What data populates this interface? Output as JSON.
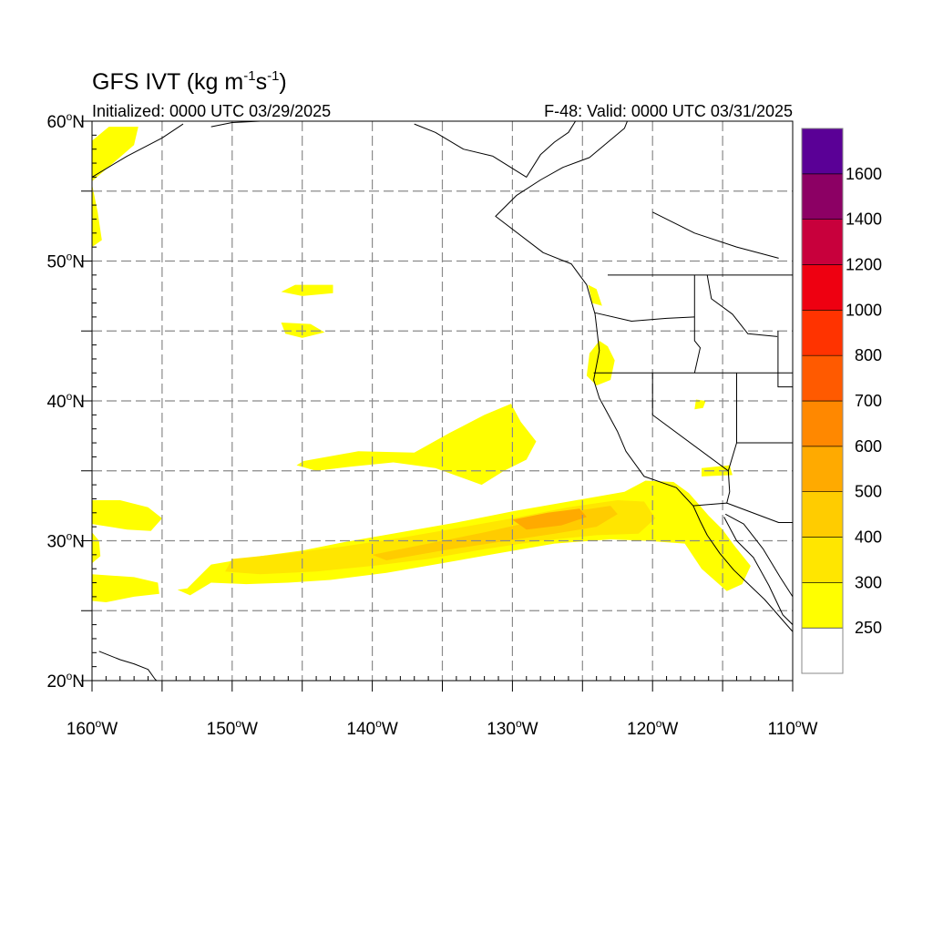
{
  "title": {
    "main": "GFS IVT (kg m",
    "sup1": "-1",
    "mid": "s",
    "sup2": "-1",
    "end": ")"
  },
  "subtitle_left": "Initialized: 0000 UTC 03/29/2025",
  "subtitle_right": "F-48: Valid: 0000 UTC 03/31/2025",
  "lat_ticks": [
    {
      "value": 60,
      "label": "60",
      "suffix": "N"
    },
    {
      "value": 50,
      "label": "50",
      "suffix": "N"
    },
    {
      "value": 40,
      "label": "40",
      "suffix": "N"
    },
    {
      "value": 30,
      "label": "30",
      "suffix": "N"
    },
    {
      "value": 20,
      "label": "20",
      "suffix": "N"
    }
  ],
  "lon_ticks": [
    {
      "value": -160,
      "label": "160",
      "suffix": "W"
    },
    {
      "value": -150,
      "label": "150",
      "suffix": "W"
    },
    {
      "value": -140,
      "label": "140",
      "suffix": "W"
    },
    {
      "value": -130,
      "label": "130",
      "suffix": "W"
    },
    {
      "value": -120,
      "label": "120",
      "suffix": "W"
    },
    {
      "value": -110,
      "label": "110",
      "suffix": "W"
    }
  ],
  "colorbar": {
    "levels": [
      {
        "label": "",
        "color": "#ffffff"
      },
      {
        "label": "250",
        "color": "#ffff00"
      },
      {
        "label": "300",
        "color": "#ffe600"
      },
      {
        "label": "400",
        "color": "#ffcc00"
      },
      {
        "label": "500",
        "color": "#ffaa00"
      },
      {
        "label": "600",
        "color": "#ff8800"
      },
      {
        "label": "700",
        "color": "#ff5a00"
      },
      {
        "label": "800",
        "color": "#ff3300"
      },
      {
        "label": "1000",
        "color": "#ee0011"
      },
      {
        "label": "1200",
        "color": "#c8003c"
      },
      {
        "label": "1400",
        "color": "#8c0064"
      },
      {
        "label": "1600",
        "color": "#5a0096"
      }
    ]
  },
  "chart_data": {
    "type": "heatmap",
    "projection": "cylindrical equidistant",
    "lon_range": [
      -160,
      -110
    ],
    "lat_range": [
      20,
      60
    ],
    "units": "kg m-1 s-1",
    "grid": true,
    "regions": [
      {
        "level": 1,
        "points": [
          [
            -160,
            32.9
          ],
          [
            -158,
            32.9
          ],
          [
            -156,
            32.4
          ],
          [
            -155,
            31.6
          ],
          [
            -155.8,
            30.7
          ],
          [
            -157.5,
            30.8
          ],
          [
            -160,
            31.2
          ]
        ]
      },
      {
        "level": 1,
        "points": [
          [
            -160,
            27.6
          ],
          [
            -157,
            27.4
          ],
          [
            -155.3,
            27.0
          ],
          [
            -155.2,
            26.2
          ],
          [
            -157,
            26.0
          ],
          [
            -159,
            25.6
          ],
          [
            -160,
            25.7
          ]
        ]
      },
      {
        "level": 1,
        "points": [
          [
            -160,
            30.6
          ],
          [
            -159.5,
            30.0
          ],
          [
            -159.4,
            28.9
          ],
          [
            -160,
            28.4
          ]
        ]
      },
      {
        "level": 1,
        "points": [
          [
            -160,
            55.7
          ],
          [
            -158.5,
            57.0
          ],
          [
            -157,
            58.3
          ],
          [
            -156.7,
            59.6
          ],
          [
            -158.8,
            59.6
          ],
          [
            -160,
            58.6
          ]
        ]
      },
      {
        "level": 1,
        "points": [
          [
            -160,
            55.5
          ],
          [
            -159.6,
            53.5
          ],
          [
            -159.3,
            51.5
          ],
          [
            -160,
            51.0
          ]
        ]
      },
      {
        "level": 1,
        "points": [
          [
            -153.9,
            26.5
          ],
          [
            -153.2,
            26.6
          ],
          [
            -151.5,
            28.3
          ],
          [
            -148,
            28.9
          ],
          [
            -145,
            29.3
          ],
          [
            -142,
            29.9
          ],
          [
            -138,
            30.6
          ],
          [
            -134,
            31.3
          ],
          [
            -130,
            32.1
          ],
          [
            -126,
            32.8
          ],
          [
            -122,
            33.5
          ],
          [
            -120.5,
            34.3
          ],
          [
            -118.5,
            34.2
          ],
          [
            -117.4,
            33.4
          ],
          [
            -116.0,
            31.8
          ],
          [
            -115.0,
            30.8
          ],
          [
            -114.2,
            29.7
          ],
          [
            -113.0,
            28.2
          ],
          [
            -113.6,
            26.9
          ],
          [
            -114.7,
            26.4
          ],
          [
            -116.5,
            28.0
          ],
          [
            -117.7,
            29.8
          ],
          [
            -120.5,
            30.0
          ],
          [
            -123,
            30.1
          ],
          [
            -127,
            29.8
          ],
          [
            -131,
            29.1
          ],
          [
            -135,
            28.4
          ],
          [
            -139,
            27.7
          ],
          [
            -143,
            27.2
          ],
          [
            -146,
            27.0
          ],
          [
            -149,
            26.9
          ],
          [
            -151.5,
            27.0
          ],
          [
            -153.0,
            26.1
          ]
        ]
      },
      {
        "level": 2,
        "points": [
          [
            -150,
            28.7
          ],
          [
            -146,
            29.1
          ],
          [
            -142,
            29.6
          ],
          [
            -138,
            30.2
          ],
          [
            -134,
            30.9
          ],
          [
            -130,
            31.6
          ],
          [
            -126,
            32.4
          ],
          [
            -122.5,
            32.9
          ],
          [
            -120.6,
            32.8
          ],
          [
            -119.8,
            31.6
          ],
          [
            -121,
            30.5
          ],
          [
            -124,
            30.4
          ],
          [
            -128,
            30.0
          ],
          [
            -132,
            29.4
          ],
          [
            -136,
            28.7
          ],
          [
            -140,
            28.2
          ],
          [
            -144,
            27.8
          ],
          [
            -148,
            27.6
          ],
          [
            -150.5,
            27.8
          ]
        ]
      },
      {
        "level": 3,
        "points": [
          [
            -140,
            29.0
          ],
          [
            -136,
            29.8
          ],
          [
            -132,
            30.6
          ],
          [
            -128,
            31.5
          ],
          [
            -125,
            32.2
          ],
          [
            -123.0,
            32.5
          ],
          [
            -122.5,
            31.9
          ],
          [
            -124,
            31.0
          ],
          [
            -127,
            30.5
          ],
          [
            -131,
            29.9
          ],
          [
            -135,
            29.3
          ],
          [
            -139,
            28.6
          ]
        ]
      },
      {
        "level": 4,
        "points": [
          [
            -130,
            31.5
          ],
          [
            -127.5,
            32.0
          ],
          [
            -125.2,
            32.3
          ],
          [
            -124.7,
            31.7
          ],
          [
            -126.5,
            31.1
          ],
          [
            -129,
            30.8
          ]
        ]
      },
      {
        "level": 1,
        "points": [
          [
            -144.9,
            35.7
          ],
          [
            -141,
            36.4
          ],
          [
            -137,
            36.3
          ],
          [
            -134.5,
            37.7
          ],
          [
            -132,
            39.0
          ],
          [
            -130.1,
            39.8
          ],
          [
            -129.4,
            38.5
          ],
          [
            -128.3,
            37.1
          ],
          [
            -129.0,
            35.8
          ],
          [
            -130.6,
            35.0
          ],
          [
            -132.2,
            34.0
          ],
          [
            -135.5,
            35.2
          ],
          [
            -138.5,
            35.6
          ],
          [
            -141.5,
            35.3
          ],
          [
            -144.0,
            35.0
          ],
          [
            -145.4,
            35.4
          ]
        ]
      },
      {
        "level": 1,
        "points": [
          [
            -124.5,
            43.4
          ],
          [
            -123.8,
            44.3
          ],
          [
            -123.2,
            43.9
          ],
          [
            -122.7,
            42.9
          ],
          [
            -123.0,
            41.5
          ],
          [
            -124.0,
            41.1
          ],
          [
            -124.7,
            41.8
          ]
        ]
      },
      {
        "level": 1,
        "points": [
          [
            -117,
            39.4
          ],
          [
            -116.4,
            39.5
          ],
          [
            -116.2,
            40.0
          ],
          [
            -116.9,
            40.1
          ]
        ]
      },
      {
        "level": 1,
        "points": [
          [
            -116.5,
            35.2
          ],
          [
            -114.5,
            35.4
          ],
          [
            -114.3,
            34.7
          ],
          [
            -116.5,
            34.6
          ]
        ]
      },
      {
        "level": 1,
        "points": [
          [
            -146.5,
            47.8
          ],
          [
            -145.5,
            48.3
          ],
          [
            -142.8,
            48.3
          ],
          [
            -142.8,
            47.7
          ],
          [
            -145,
            47.5
          ]
        ]
      },
      {
        "level": 1,
        "points": [
          [
            -146.5,
            45.6
          ],
          [
            -144.4,
            45.5
          ],
          [
            -143.4,
            44.9
          ],
          [
            -145,
            44.5
          ],
          [
            -146.2,
            44.8
          ]
        ]
      },
      {
        "level": 1,
        "points": [
          [
            -124.6,
            48.3
          ],
          [
            -124.0,
            48.0
          ],
          [
            -123.6,
            46.8
          ],
          [
            -124.3,
            47.0
          ]
        ]
      }
    ],
    "borders": [
      {
        "name": "coast",
        "points": [
          [
            -121.8,
            60
          ],
          [
            -122,
            59.5
          ],
          [
            -124.5,
            57.4
          ],
          [
            -126.4,
            56.7
          ],
          [
            -128.0,
            55.8
          ],
          [
            -129.7,
            54.7
          ],
          [
            -131.2,
            53.2
          ],
          [
            -127.8,
            50.6
          ],
          [
            -125.8,
            49.8
          ],
          [
            -124.7,
            48.3
          ],
          [
            -124.1,
            46.2
          ],
          [
            -123.8,
            43.6
          ],
          [
            -124.2,
            41.5
          ],
          [
            -123.8,
            40.2
          ],
          [
            -122.5,
            37.8
          ],
          [
            -121.9,
            36.4
          ],
          [
            -120.6,
            34.6
          ],
          [
            -118.3,
            33.8
          ],
          [
            -117.1,
            32.5
          ],
          [
            -116.6,
            31.4
          ],
          [
            -116.1,
            30.4
          ],
          [
            -115.2,
            29.1
          ],
          [
            -114.2,
            27.9
          ],
          [
            -112.0,
            25.8
          ],
          [
            -110,
            23.5
          ]
        ]
      },
      {
        "name": "baja-gulf",
        "points": [
          [
            -114.9,
            31.7
          ],
          [
            -114.0,
            30.0
          ],
          [
            -112.8,
            28.8
          ],
          [
            -111.7,
            26.8
          ],
          [
            -110.7,
            24.7
          ],
          [
            -110,
            24.0
          ]
        ]
      },
      {
        "name": "mexico-mainland",
        "points": [
          [
            -114.8,
            31.9
          ],
          [
            -113.5,
            31.2
          ],
          [
            -112.1,
            29.4
          ],
          [
            -110.9,
            27.4
          ],
          [
            -110,
            26.0
          ]
        ]
      },
      {
        "name": "bc-ak-border",
        "points": [
          [
            -131.4,
            57.5
          ],
          [
            -129.0,
            56.0
          ],
          [
            -128.0,
            57.6
          ],
          [
            -127.0,
            58.5
          ],
          [
            -126.0,
            59.2
          ],
          [
            -125.5,
            60
          ]
        ]
      },
      {
        "name": "ak-bc-coastal",
        "points": [
          [
            -137.0,
            59.8
          ],
          [
            -135.5,
            59.2
          ],
          [
            -133.5,
            58.0
          ],
          [
            -131.4,
            57.5
          ]
        ]
      },
      {
        "name": "us-canada",
        "points": [
          [
            -123.2,
            49.0
          ],
          [
            -110,
            49.0
          ]
        ]
      },
      {
        "name": "wa-or",
        "points": [
          [
            -124.1,
            46.3
          ],
          [
            -121.5,
            45.7
          ],
          [
            -119.0,
            45.9
          ],
          [
            -117.0,
            46.0
          ]
        ]
      },
      {
        "name": "id-wa",
        "points": [
          [
            -117.0,
            49.0
          ],
          [
            -117.0,
            44.3
          ]
        ]
      },
      {
        "name": "or-id",
        "points": [
          [
            -117.0,
            44.3
          ],
          [
            -116.6,
            43.8
          ],
          [
            -117.0,
            42.0
          ]
        ]
      },
      {
        "name": "ca-or",
        "points": [
          [
            -124.2,
            42.0
          ],
          [
            -110,
            42.0
          ]
        ]
      },
      {
        "name": "ca-nv",
        "points": [
          [
            -120.0,
            42.0
          ],
          [
            -120.0,
            39.0
          ],
          [
            -114.6,
            35.0
          ]
        ]
      },
      {
        "name": "nv-az",
        "points": [
          [
            -114.0,
            42.0
          ],
          [
            -114.0,
            37.0
          ],
          [
            -114.6,
            35.0
          ]
        ]
      },
      {
        "name": "ca-az",
        "points": [
          [
            -114.6,
            35.0
          ],
          [
            -114.5,
            33.5
          ],
          [
            -114.7,
            32.7
          ]
        ]
      },
      {
        "name": "us-mexico",
        "points": [
          [
            -117.1,
            32.5
          ],
          [
            -114.7,
            32.7
          ],
          [
            -111.0,
            31.3
          ],
          [
            -110,
            31.3
          ]
        ]
      },
      {
        "name": "ut-az",
        "points": [
          [
            -114.0,
            37.0
          ],
          [
            -110,
            37.0
          ]
        ]
      },
      {
        "name": "id-mt",
        "points": [
          [
            -116.1,
            49.0
          ],
          [
            -115.8,
            47.3
          ],
          [
            -114.3,
            46.2
          ],
          [
            -113.2,
            44.8
          ],
          [
            -111.1,
            44.6
          ]
        ]
      },
      {
        "name": "wy-west",
        "points": [
          [
            -111.05,
            45.0
          ],
          [
            -111.05,
            41.0
          ],
          [
            -110,
            41.0
          ]
        ]
      },
      {
        "name": "canada-interior",
        "points": [
          [
            -120,
            53.5
          ],
          [
            -117,
            52.0
          ],
          [
            -114,
            51.0
          ],
          [
            -111,
            50.2
          ]
        ]
      },
      {
        "name": "alaska-south",
        "points": [
          [
            -160,
            56.0
          ],
          [
            -157.5,
            57.5
          ],
          [
            -155,
            58.8
          ],
          [
            -153.5,
            59.8
          ]
        ]
      },
      {
        "name": "kenai",
        "points": [
          [
            -151.5,
            59.6
          ],
          [
            -150.0,
            59.9
          ],
          [
            -148.0,
            60
          ]
        ]
      },
      {
        "name": "hawaii",
        "points": [
          [
            -159.5,
            22.1
          ],
          [
            -158.0,
            21.5
          ],
          [
            -157.0,
            21.2
          ],
          [
            -156.0,
            20.8
          ],
          [
            -155.5,
            20.1
          ],
          [
            -154.8,
            19.5
          ]
        ]
      }
    ]
  }
}
